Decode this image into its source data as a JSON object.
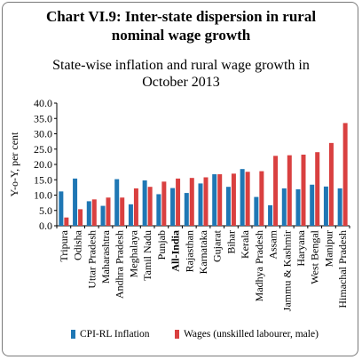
{
  "title_line1": "Chart VI.9: Inter-state dispersion in rural",
  "title_line2": "nominal wage growth",
  "subtitle_line1": "State-wise inflation and rural wage growth in",
  "subtitle_line2": "October 2013",
  "colors": {
    "cpi": "#1f77b4",
    "wages": "#d94040",
    "axis": "#000000"
  },
  "chart_data": {
    "type": "bar",
    "ylabel": "Y-o-Y, per cent",
    "ylim": [
      0,
      40
    ],
    "yticks": [
      "0.0",
      "5.0",
      "10.0",
      "15.0",
      "20.0",
      "25.0",
      "30.0",
      "35.0",
      "40.0"
    ],
    "categories": [
      "Tripura",
      "Odisha",
      "Uttar Pradesh",
      "Maharashtra",
      "Andhra Pradesh",
      "Meghalaya",
      "Tamil Nadu",
      "Punjab",
      "All-India",
      "Rajasthan",
      "Karnataka",
      "Gujarat",
      "Bihar",
      "Kerala",
      "Madhya Pradesh",
      "Assam",
      "Jammu & Kashmir",
      "Haryana",
      "West Bengal",
      "Manipur",
      "Himachal Pradesh"
    ],
    "bold_categories": [
      "All-India"
    ],
    "series": [
      {
        "name": "CPI-RL Inflation",
        "values": [
          11.2,
          15.4,
          8.0,
          6.5,
          15.2,
          7.0,
          14.8,
          10.3,
          12.3,
          10.7,
          13.8,
          16.8,
          12.7,
          18.5,
          9.4,
          6.7,
          12.2,
          11.9,
          13.4,
          12.8,
          12.2
        ]
      },
      {
        "name": "Wages (unskilled labourer, male)",
        "values": [
          2.7,
          5.4,
          8.6,
          9.2,
          9.2,
          12.2,
          12.7,
          14.4,
          15.4,
          15.6,
          15.8,
          16.8,
          17.0,
          17.6,
          17.8,
          22.8,
          23.0,
          23.2,
          24.0,
          27.0,
          33.5
        ]
      }
    ],
    "legend_position": "bottom",
    "grid": false
  }
}
